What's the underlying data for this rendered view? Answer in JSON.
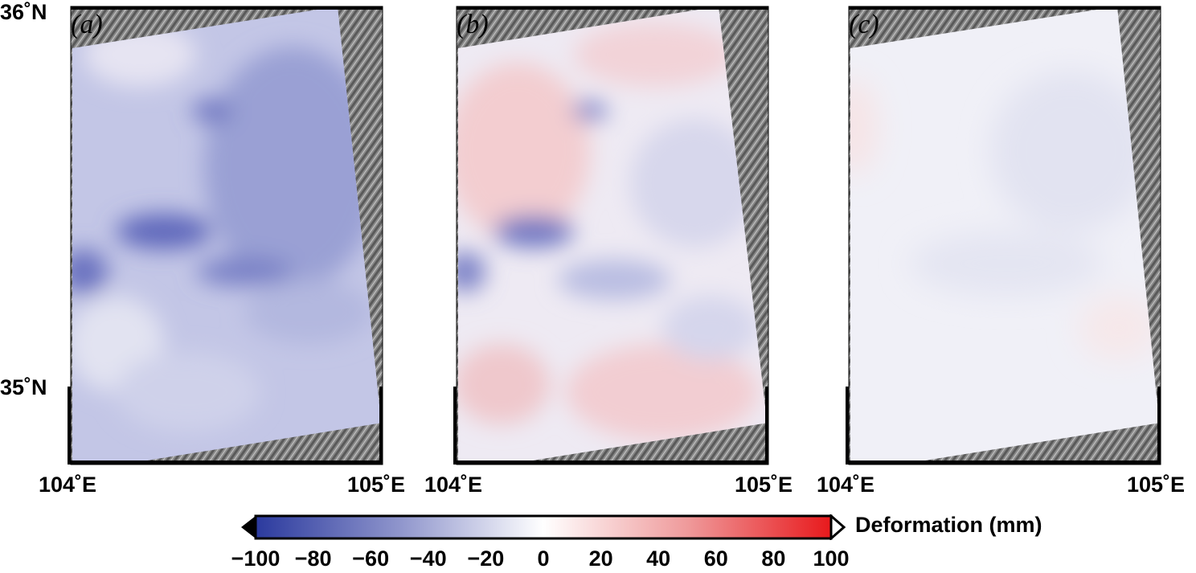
{
  "latitude_labels": {
    "top": "36˚N",
    "bottom": "35˚N"
  },
  "panels": [
    {
      "label": "(a)",
      "lon_west": "104˚E",
      "lon_east": "105˚E",
      "tone": "blue"
    },
    {
      "label": "(b)",
      "lon_west": "104˚E",
      "lon_east": "105˚E",
      "tone": "mixed"
    },
    {
      "label": "(c)",
      "lon_west": "104˚E",
      "lon_east": "105˚E",
      "tone": "neutral"
    }
  ],
  "colorbar": {
    "title": "Deformation (mm)",
    "ticks": [
      "−100",
      "−80",
      "−60",
      "−40",
      "−20",
      "0",
      "20",
      "40",
      "60",
      "80",
      "100"
    ],
    "range": [
      -100,
      100
    ],
    "colors": {
      "min": "#2b3a9e",
      "mid": "#ffffff",
      "max": "#e8191c"
    }
  }
}
